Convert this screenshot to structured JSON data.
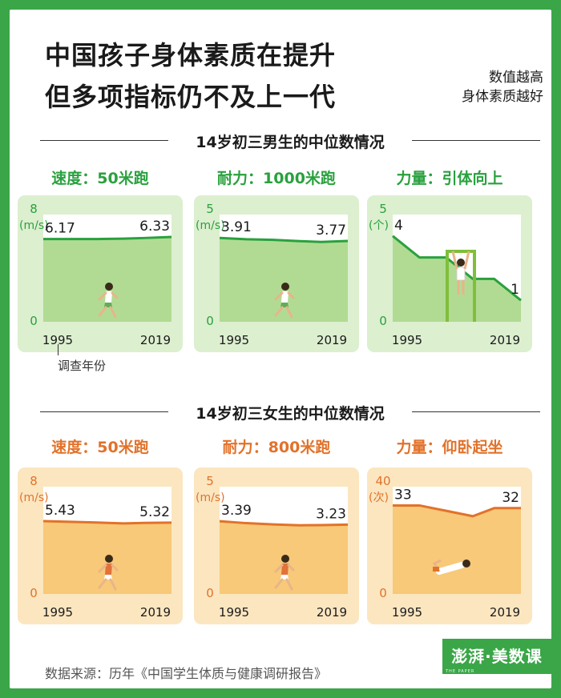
{
  "header": {
    "title_line1": "中国孩子身体素质在提升",
    "title_line2": "但多项指标仍不及上一代",
    "note_line1": "数值越高",
    "note_line2": "身体素质越好"
  },
  "colors": {
    "border": "#3aa648",
    "male_panel": "#dcefcf",
    "male_area": "#b1db93",
    "male_line": "#29a13e",
    "male_title": "#29a13e",
    "female_panel": "#fbe6c0",
    "female_area": "#f7c978",
    "female_line": "#e2722a",
    "female_title": "#e2722a"
  },
  "sections": {
    "male_title": "14岁初三男生的中位数情况",
    "female_title": "14岁初三女生的中位数情况"
  },
  "axis_note": "调查年份",
  "source": "数据来源：历年《中国学生体质与健康调研报告》",
  "logo": {
    "text": "澎湃·美数课",
    "sub": "THE PAPER"
  },
  "chart_data": [
    {
      "type": "area",
      "group": "male",
      "title": "速度：50米跑",
      "ylim": [
        0,
        8
      ],
      "yticks": [
        "8",
        "0"
      ],
      "unit": "(m/s)",
      "x": [
        1995,
        2000,
        2005,
        2010,
        2014,
        2019
      ],
      "xticks": [
        "1995",
        "2019"
      ],
      "values": [
        6.17,
        6.17,
        6.17,
        6.2,
        6.25,
        6.33
      ],
      "labels": [
        {
          "index": 0,
          "text": "6.17"
        },
        {
          "index": 5,
          "text": "6.33"
        }
      ]
    },
    {
      "type": "area",
      "group": "male",
      "title": "耐力：1000米跑",
      "ylim": [
        0,
        5
      ],
      "yticks": [
        "5",
        "0"
      ],
      "unit": "(m/s)",
      "x": [
        1995,
        2000,
        2005,
        2010,
        2014,
        2019
      ],
      "xticks": [
        "1995",
        "2019"
      ],
      "values": [
        3.91,
        3.85,
        3.82,
        3.76,
        3.72,
        3.77
      ],
      "labels": [
        {
          "index": 0,
          "text": "3.91"
        },
        {
          "index": 5,
          "text": "3.77"
        }
      ]
    },
    {
      "type": "area",
      "group": "male",
      "title": "力量：引体向上",
      "ylim": [
        0,
        5
      ],
      "yticks": [
        "5",
        "0"
      ],
      "unit": "(个)",
      "x": [
        1995,
        2000,
        2005,
        2010,
        2014,
        2019
      ],
      "xticks": [
        "1995",
        "2019"
      ],
      "values": [
        4,
        3,
        3,
        2,
        2,
        1
      ],
      "labels": [
        {
          "index": 0,
          "text": "4"
        },
        {
          "index": 5,
          "text": "1"
        }
      ]
    },
    {
      "type": "area",
      "group": "female",
      "title": "速度：50米跑",
      "ylim": [
        0,
        8
      ],
      "yticks": [
        "8",
        "0"
      ],
      "unit": "(m/s)",
      "x": [
        1995,
        2000,
        2005,
        2010,
        2014,
        2019
      ],
      "xticks": [
        "1995",
        "2019"
      ],
      "values": [
        5.43,
        5.38,
        5.33,
        5.26,
        5.3,
        5.32
      ],
      "labels": [
        {
          "index": 0,
          "text": "5.43"
        },
        {
          "index": 5,
          "text": "5.32"
        }
      ]
    },
    {
      "type": "area",
      "group": "female",
      "title": "耐力：800米跑",
      "ylim": [
        0,
        5
      ],
      "yticks": [
        "5",
        "0"
      ],
      "unit": "(m/s)",
      "x": [
        1995,
        2000,
        2005,
        2010,
        2014,
        2019
      ],
      "xticks": [
        "1995",
        "2019"
      ],
      "values": [
        3.39,
        3.3,
        3.24,
        3.2,
        3.21,
        3.23
      ],
      "labels": [
        {
          "index": 0,
          "text": "3.39"
        },
        {
          "index": 5,
          "text": "3.23"
        }
      ]
    },
    {
      "type": "area",
      "group": "female",
      "title": "力量：仰卧起坐",
      "ylim": [
        0,
        40
      ],
      "yticks": [
        "40",
        "0"
      ],
      "unit": "(次)",
      "x": [
        1995,
        2000,
        2005,
        2010,
        2014,
        2019
      ],
      "xticks": [
        "1995",
        "2019"
      ],
      "values": [
        33,
        33,
        31,
        29,
        32,
        32
      ],
      "labels": [
        {
          "index": 0,
          "text": "33"
        },
        {
          "index": 5,
          "text": "32"
        }
      ]
    }
  ]
}
